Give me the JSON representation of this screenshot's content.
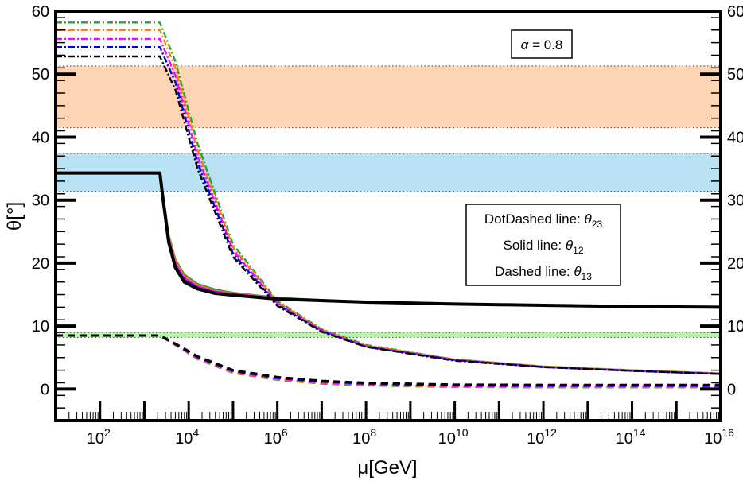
{
  "chart_data": {
    "type": "line",
    "title": "",
    "xlabel": "μ[GeV]",
    "ylabel": "θ[°]",
    "xscale": "log",
    "xlim_log10": [
      1,
      16
    ],
    "ylim": [
      -5,
      60
    ],
    "x_ticks": [
      {
        "log10": 2,
        "base": "10",
        "exp": "2"
      },
      {
        "log10": 4,
        "base": "10",
        "exp": "4"
      },
      {
        "log10": 6,
        "base": "10",
        "exp": "6"
      },
      {
        "log10": 8,
        "base": "10",
        "exp": "8"
      },
      {
        "log10": 10,
        "base": "10",
        "exp": "10"
      },
      {
        "log10": 12,
        "base": "10",
        "exp": "12"
      },
      {
        "log10": 14,
        "base": "10",
        "exp": "14"
      },
      {
        "log10": 16,
        "base": "10",
        "exp": "16"
      }
    ],
    "y_ticks": [
      0,
      10,
      20,
      30,
      40,
      50,
      60
    ],
    "bands": [
      {
        "name": "theta23-range",
        "y0": 41.5,
        "y1": 51.3,
        "color": "#fdd5b4"
      },
      {
        "name": "theta12-range",
        "y0": 31.4,
        "y1": 37.4,
        "color": "#b9e3f5"
      },
      {
        "name": "theta13-range",
        "y0": 8.2,
        "y1": 9.0,
        "color": "#b8f5a8"
      }
    ],
    "annotation": {
      "text": "α = 0.8",
      "greek": "α",
      "value": "= 0.8"
    },
    "legend": {
      "position": "center-right",
      "entries": [
        {
          "text": "DotDashed line: ",
          "symbol": "θ",
          "sub": "23"
        },
        {
          "text": "Solid line: ",
          "symbol": "θ",
          "sub": "12"
        },
        {
          "text": "Dashed line: ",
          "symbol": "θ",
          "sub": "13"
        }
      ]
    },
    "series": [
      {
        "name": "theta23-green",
        "style": "dotdash",
        "color": "#2ca02c",
        "points": [
          [
            1,
            58.2
          ],
          [
            3.35,
            58.2
          ],
          [
            3.7,
            52
          ],
          [
            4.2,
            39
          ],
          [
            5,
            23
          ],
          [
            6,
            14
          ],
          [
            7,
            9.5
          ],
          [
            8,
            7
          ],
          [
            10,
            4.7
          ],
          [
            12,
            3.6
          ],
          [
            14,
            3.0
          ],
          [
            16,
            2.5
          ]
        ]
      },
      {
        "name": "theta23-orange",
        "style": "dotdash",
        "color": "#ff7f0e",
        "points": [
          [
            1,
            57.0
          ],
          [
            3.35,
            57.0
          ],
          [
            3.7,
            51
          ],
          [
            4.2,
            38
          ],
          [
            5,
            22.5
          ],
          [
            6,
            13.8
          ],
          [
            7,
            9.4
          ],
          [
            8,
            6.9
          ],
          [
            10,
            4.7
          ],
          [
            12,
            3.6
          ],
          [
            14,
            3.0
          ],
          [
            16,
            2.5
          ]
        ]
      },
      {
        "name": "theta23-magenta",
        "style": "dotdash",
        "color": "#ff00ff",
        "points": [
          [
            1,
            55.6
          ],
          [
            3.35,
            55.6
          ],
          [
            3.7,
            49.8
          ],
          [
            4.2,
            37
          ],
          [
            5,
            22
          ],
          [
            6,
            13.6
          ],
          [
            7,
            9.3
          ],
          [
            8,
            6.8
          ],
          [
            10,
            4.6
          ],
          [
            12,
            3.5
          ],
          [
            14,
            2.9
          ],
          [
            16,
            2.4
          ]
        ]
      },
      {
        "name": "theta23-blue",
        "style": "dotdash",
        "color": "#0000dd",
        "points": [
          [
            1,
            54.3
          ],
          [
            3.35,
            54.3
          ],
          [
            3.7,
            48.7
          ],
          [
            4.2,
            36
          ],
          [
            5,
            21.5
          ],
          [
            6,
            13.4
          ],
          [
            7,
            9.2
          ],
          [
            8,
            6.7
          ],
          [
            10,
            4.6
          ],
          [
            12,
            3.5
          ],
          [
            14,
            2.9
          ],
          [
            16,
            2.4
          ]
        ]
      },
      {
        "name": "theta23-black",
        "style": "dotdash",
        "color": "#000000",
        "points": [
          [
            1,
            52.8
          ],
          [
            3.35,
            52.8
          ],
          [
            3.7,
            47.5
          ],
          [
            4.2,
            35
          ],
          [
            5,
            21
          ],
          [
            6,
            13.2
          ],
          [
            7,
            9.1
          ],
          [
            8,
            6.7
          ],
          [
            10,
            4.5
          ],
          [
            12,
            3.5
          ],
          [
            14,
            2.9
          ],
          [
            16,
            2.4
          ]
        ]
      },
      {
        "name": "theta12-green",
        "style": "solid",
        "color": "#2ca02c",
        "points": [
          [
            1,
            34.3
          ],
          [
            3.35,
            34.3
          ],
          [
            3.42,
            31
          ],
          [
            3.55,
            24.5
          ],
          [
            3.7,
            20.6
          ],
          [
            3.9,
            18.2
          ],
          [
            4.2,
            16.7
          ],
          [
            4.6,
            15.8
          ],
          [
            5,
            15.3
          ],
          [
            6,
            14.5
          ],
          [
            8,
            13.8
          ],
          [
            10,
            13.5
          ],
          [
            12,
            13.3
          ],
          [
            14,
            13.1
          ],
          [
            16,
            13.0
          ]
        ]
      },
      {
        "name": "theta12-orange",
        "style": "solid",
        "color": "#ff7f0e",
        "points": [
          [
            1,
            34.3
          ],
          [
            3.35,
            34.3
          ],
          [
            3.42,
            30.8
          ],
          [
            3.55,
            24.2
          ],
          [
            3.7,
            20.3
          ],
          [
            3.9,
            17.9
          ],
          [
            4.2,
            16.5
          ],
          [
            4.6,
            15.6
          ],
          [
            5,
            15.2
          ],
          [
            6,
            14.4
          ],
          [
            8,
            13.8
          ],
          [
            10,
            13.5
          ],
          [
            12,
            13.3
          ],
          [
            14,
            13.1
          ],
          [
            16,
            13.0
          ]
        ]
      },
      {
        "name": "theta12-magenta",
        "style": "solid",
        "color": "#ff00ff",
        "points": [
          [
            1,
            34.3
          ],
          [
            3.35,
            34.3
          ],
          [
            3.42,
            30.6
          ],
          [
            3.55,
            23.9
          ],
          [
            3.7,
            19.9
          ],
          [
            3.9,
            17.6
          ],
          [
            4.2,
            16.3
          ],
          [
            4.6,
            15.5
          ],
          [
            5,
            15.1
          ],
          [
            6,
            14.4
          ],
          [
            8,
            13.8
          ],
          [
            10,
            13.5
          ],
          [
            12,
            13.3
          ],
          [
            14,
            13.1
          ],
          [
            16,
            13.0
          ]
        ]
      },
      {
        "name": "theta12-blue",
        "style": "solid",
        "color": "#0000dd",
        "points": [
          [
            1,
            34.3
          ],
          [
            3.35,
            34.3
          ],
          [
            3.42,
            30.4
          ],
          [
            3.55,
            23.6
          ],
          [
            3.7,
            19.6
          ],
          [
            3.9,
            17.3
          ],
          [
            4.2,
            16.1
          ],
          [
            4.6,
            15.3
          ],
          [
            5,
            15.0
          ],
          [
            6,
            14.3
          ],
          [
            8,
            13.8
          ],
          [
            10,
            13.5
          ],
          [
            12,
            13.3
          ],
          [
            14,
            13.1
          ],
          [
            16,
            13.0
          ]
        ]
      },
      {
        "name": "theta12-black",
        "style": "solid",
        "color": "#000000",
        "points": [
          [
            1,
            34.3
          ],
          [
            3.35,
            34.3
          ],
          [
            3.42,
            30.2
          ],
          [
            3.55,
            23.3
          ],
          [
            3.7,
            19.3
          ],
          [
            3.9,
            17.0
          ],
          [
            4.2,
            15.9
          ],
          [
            4.6,
            15.2
          ],
          [
            5,
            14.9
          ],
          [
            6,
            14.3
          ],
          [
            8,
            13.8
          ],
          [
            10,
            13.5
          ],
          [
            12,
            13.3
          ],
          [
            14,
            13.1
          ],
          [
            16,
            13.0
          ]
        ]
      },
      {
        "name": "theta13-green",
        "style": "dashed",
        "color": "#2ca02c",
        "points": [
          [
            1,
            8.5
          ],
          [
            3.35,
            8.5
          ],
          [
            3.7,
            7.0
          ],
          [
            4.2,
            4.8
          ],
          [
            5,
            2.6
          ],
          [
            6,
            1.5
          ],
          [
            7,
            0.9
          ],
          [
            8,
            0.6
          ],
          [
            10,
            0.35
          ],
          [
            12,
            0.3
          ],
          [
            14,
            0.3
          ],
          [
            16,
            0.3
          ]
        ]
      },
      {
        "name": "theta13-orange",
        "style": "dashed",
        "color": "#ff7f0e",
        "points": [
          [
            1,
            8.5
          ],
          [
            3.35,
            8.5
          ],
          [
            3.7,
            7.05
          ],
          [
            4.2,
            4.9
          ],
          [
            5,
            2.7
          ],
          [
            6,
            1.6
          ],
          [
            7,
            1.0
          ],
          [
            8,
            0.7
          ],
          [
            10,
            0.4
          ],
          [
            12,
            0.35
          ],
          [
            14,
            0.35
          ],
          [
            16,
            0.35
          ]
        ]
      },
      {
        "name": "theta13-magenta",
        "style": "dashed",
        "color": "#ff00ff",
        "points": [
          [
            1,
            8.5
          ],
          [
            3.35,
            8.5
          ],
          [
            3.7,
            7.1
          ],
          [
            4.2,
            5.0
          ],
          [
            5,
            2.8
          ],
          [
            6,
            1.7
          ],
          [
            7,
            1.1
          ],
          [
            8,
            0.8
          ],
          [
            10,
            0.5
          ],
          [
            12,
            0.45
          ],
          [
            14,
            0.45
          ],
          [
            16,
            0.45
          ]
        ]
      },
      {
        "name": "theta13-blue",
        "style": "dashed",
        "color": "#0000dd",
        "points": [
          [
            1,
            8.5
          ],
          [
            3.35,
            8.5
          ],
          [
            3.7,
            7.15
          ],
          [
            4.2,
            5.1
          ],
          [
            5,
            2.9
          ],
          [
            6,
            1.8
          ],
          [
            7,
            1.2
          ],
          [
            8,
            0.9
          ],
          [
            10,
            0.6
          ],
          [
            12,
            0.55
          ],
          [
            14,
            0.55
          ],
          [
            16,
            0.55
          ]
        ]
      },
      {
        "name": "theta13-black",
        "style": "dashed",
        "color": "#000000",
        "points": [
          [
            1,
            8.5
          ],
          [
            3.35,
            8.5
          ],
          [
            3.7,
            7.2
          ],
          [
            4.2,
            5.2
          ],
          [
            5,
            3.0
          ],
          [
            6,
            1.9
          ],
          [
            7,
            1.3
          ],
          [
            8,
            1.0
          ],
          [
            10,
            0.7
          ],
          [
            12,
            0.65
          ],
          [
            14,
            0.65
          ],
          [
            16,
            0.65
          ]
        ]
      }
    ]
  }
}
